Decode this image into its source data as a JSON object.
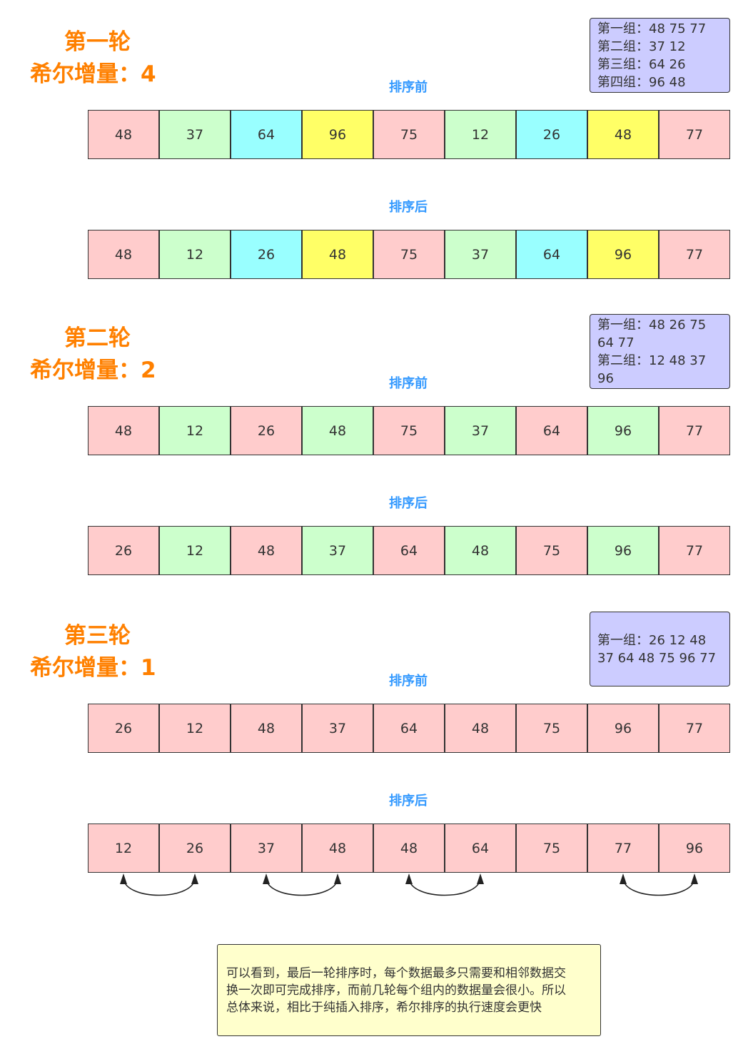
{
  "rounds": [
    {
      "title": "第一轮",
      "increment": "希尔增量：4",
      "groups": [
        "第一组：48 75 77",
        "第二组：37 12",
        "第三组：64 26",
        "第四组：96 48"
      ],
      "before_label": "排序前",
      "before": {
        "cells": [
          "48",
          "37",
          "64",
          "96",
          "75",
          "12",
          "26",
          "48",
          "77"
        ],
        "colors": [
          "#ffcccc",
          "#ccffcc",
          "#99ffff",
          "#ffff66",
          "#ffcccc",
          "#ccffcc",
          "#99ffff",
          "#ffff66",
          "#ffcccc"
        ]
      },
      "after_label": "排序后",
      "after": {
        "cells": [
          "48",
          "12",
          "26",
          "48",
          "75",
          "37",
          "64",
          "96",
          "77"
        ],
        "colors": [
          "#ffcccc",
          "#ccffcc",
          "#99ffff",
          "#ffff66",
          "#ffcccc",
          "#ccffcc",
          "#99ffff",
          "#ffff66",
          "#ffcccc"
        ]
      }
    },
    {
      "title": "第二轮",
      "increment": "希尔增量：2",
      "groups": [
        "第一组：48 26 75 64 77",
        "第二组：12 48 37 96"
      ],
      "before_label": "排序前",
      "before": {
        "cells": [
          "48",
          "12",
          "26",
          "48",
          "75",
          "37",
          "64",
          "96",
          "77"
        ],
        "colors": [
          "#ffcccc",
          "#ccffcc",
          "#ffcccc",
          "#ccffcc",
          "#ffcccc",
          "#ccffcc",
          "#ffcccc",
          "#ccffcc",
          "#ffcccc"
        ]
      },
      "after_label": "排序后",
      "after": {
        "cells": [
          "26",
          "12",
          "48",
          "37",
          "64",
          "48",
          "75",
          "96",
          "77"
        ],
        "colors": [
          "#ffcccc",
          "#ccffcc",
          "#ffcccc",
          "#ccffcc",
          "#ffcccc",
          "#ccffcc",
          "#ffcccc",
          "#ccffcc",
          "#ffcccc"
        ]
      }
    },
    {
      "title": "第三轮",
      "increment": "希尔增量：1",
      "groups": [
        "第一组：26 12 48 37 64 48 75 96 77"
      ],
      "before_label": "排序前",
      "before": {
        "cells": [
          "26",
          "12",
          "48",
          "37",
          "64",
          "48",
          "75",
          "96",
          "77"
        ],
        "colors": [
          "#ffcccc",
          "#ffcccc",
          "#ffcccc",
          "#ffcccc",
          "#ffcccc",
          "#ffcccc",
          "#ffcccc",
          "#ffcccc",
          "#ffcccc"
        ]
      },
      "after_label": "排序后",
      "after": {
        "cells": [
          "12",
          "26",
          "37",
          "48",
          "48",
          "64",
          "75",
          "77",
          "96"
        ],
        "colors": [
          "#ffcccc",
          "#ffcccc",
          "#ffcccc",
          "#ffcccc",
          "#ffcccc",
          "#ffcccc",
          "#ffcccc",
          "#ffcccc",
          "#ffcccc"
        ]
      }
    }
  ],
  "note": {
    "lines": [
      "可以看到，最后一轮排序时，每个数据最多只需要和相邻数据交",
      "换一次即可完成排序，而前几轮每个组内的数据量会很小。所以",
      "总体来说，相比于纯插入排序，希尔排序的执行速度会更快"
    ]
  }
}
